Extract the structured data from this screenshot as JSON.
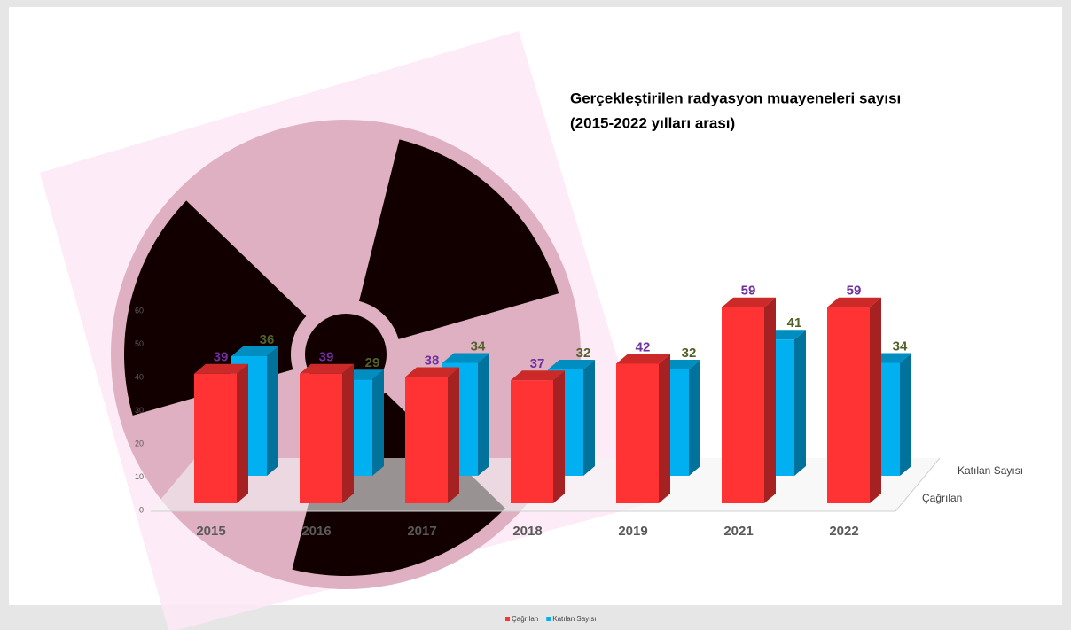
{
  "chart_data": {
    "type": "bar3d",
    "title": [
      "Gerçekleştirilen radyasyon muayeneleri sayısı",
      "(2015-2022 yılları arası)"
    ],
    "categories": [
      "2015",
      "2016",
      "2017",
      "2018",
      "2019",
      "2021",
      "2022"
    ],
    "series": [
      {
        "name": "Çağrılan",
        "color": "#ff3333",
        "label_color": "#7030a0",
        "values": [
          39,
          39,
          38,
          37,
          42,
          59,
          59
        ]
      },
      {
        "name": "Katılan Sayısı",
        "color": "#00b0f0",
        "label_color": "#4f6228",
        "values": [
          36,
          29,
          34,
          32,
          32,
          41,
          34
        ]
      }
    ],
    "ylim": [
      0,
      60
    ],
    "yticks": [
      0,
      10,
      20,
      30,
      40,
      50,
      60
    ],
    "legend": "bottom"
  }
}
